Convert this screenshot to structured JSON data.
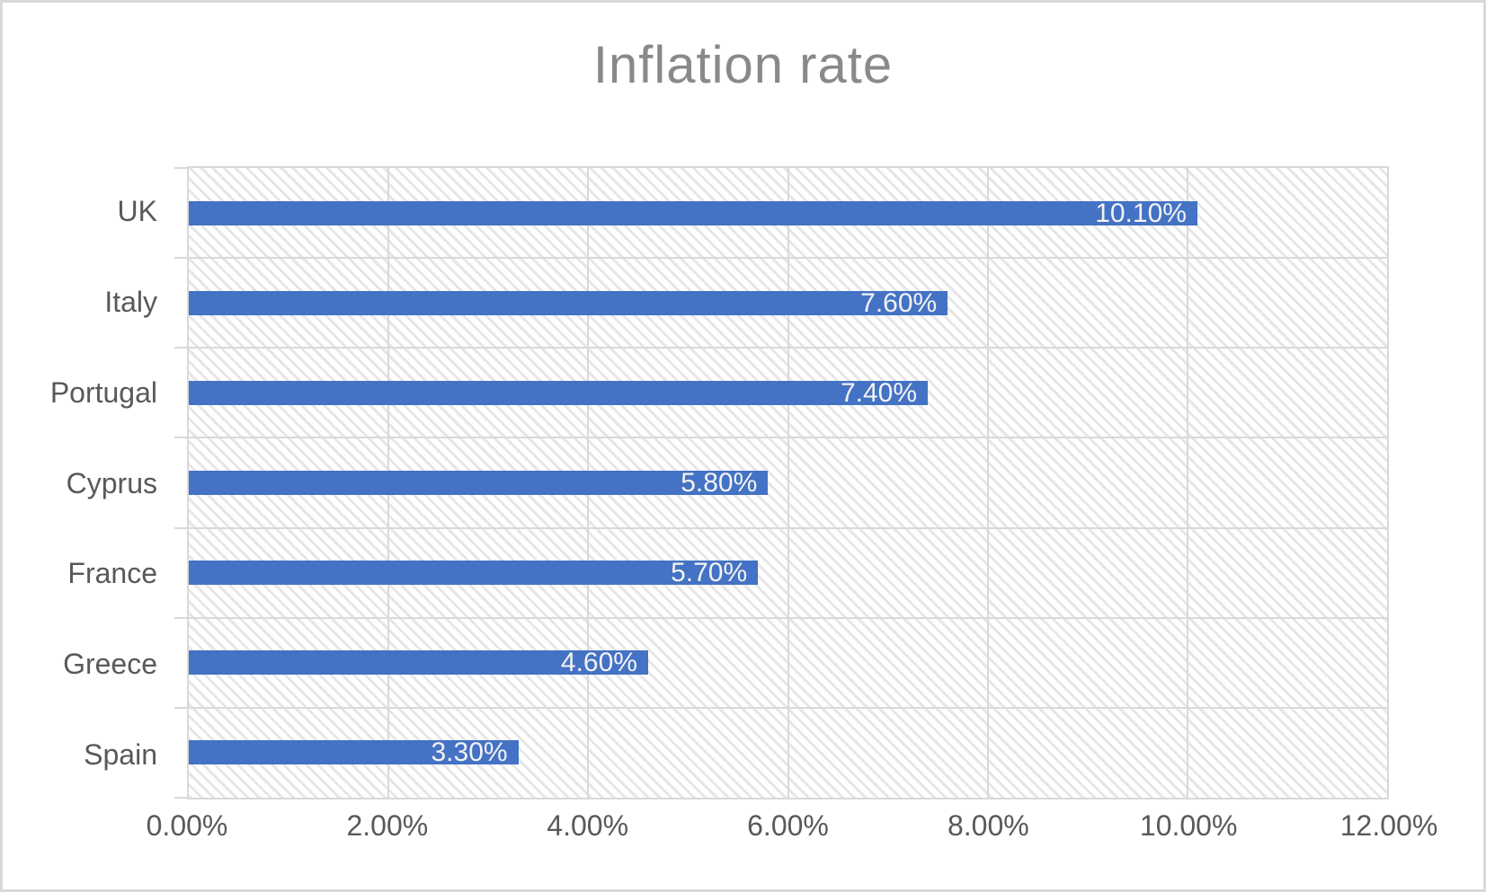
{
  "chart_data": {
    "type": "bar",
    "orientation": "horizontal",
    "title": "Inflation rate",
    "categories": [
      "UK",
      "Italy",
      "Portugal",
      "Cyprus",
      "France",
      "Greece",
      "Spain"
    ],
    "values": [
      10.1,
      7.6,
      7.4,
      5.8,
      5.7,
      4.6,
      3.3
    ],
    "data_labels": [
      "10.10%",
      "7.60%",
      "7.40%",
      "5.80%",
      "5.70%",
      "4.60%",
      "3.30%"
    ],
    "xlabel": "",
    "ylabel": "",
    "x_axis": {
      "min": 0,
      "max": 12,
      "tick_step": 2,
      "tick_labels": [
        "0.00%",
        "2.00%",
        "4.00%",
        "6.00%",
        "8.00%",
        "10.00%",
        "12.00%"
      ]
    },
    "legend_position": "none",
    "grid": true,
    "plot_background": "diagonal-hatch",
    "colors": {
      "bar_fill": "#4472c4",
      "data_label_text": "#f2f2f2",
      "gridline": "#d9d9d9",
      "axis_text": "#595959",
      "title_text": "#898989",
      "hatch_stripe": "#e6e6e6",
      "frame_border": "#d9d9d9"
    }
  }
}
